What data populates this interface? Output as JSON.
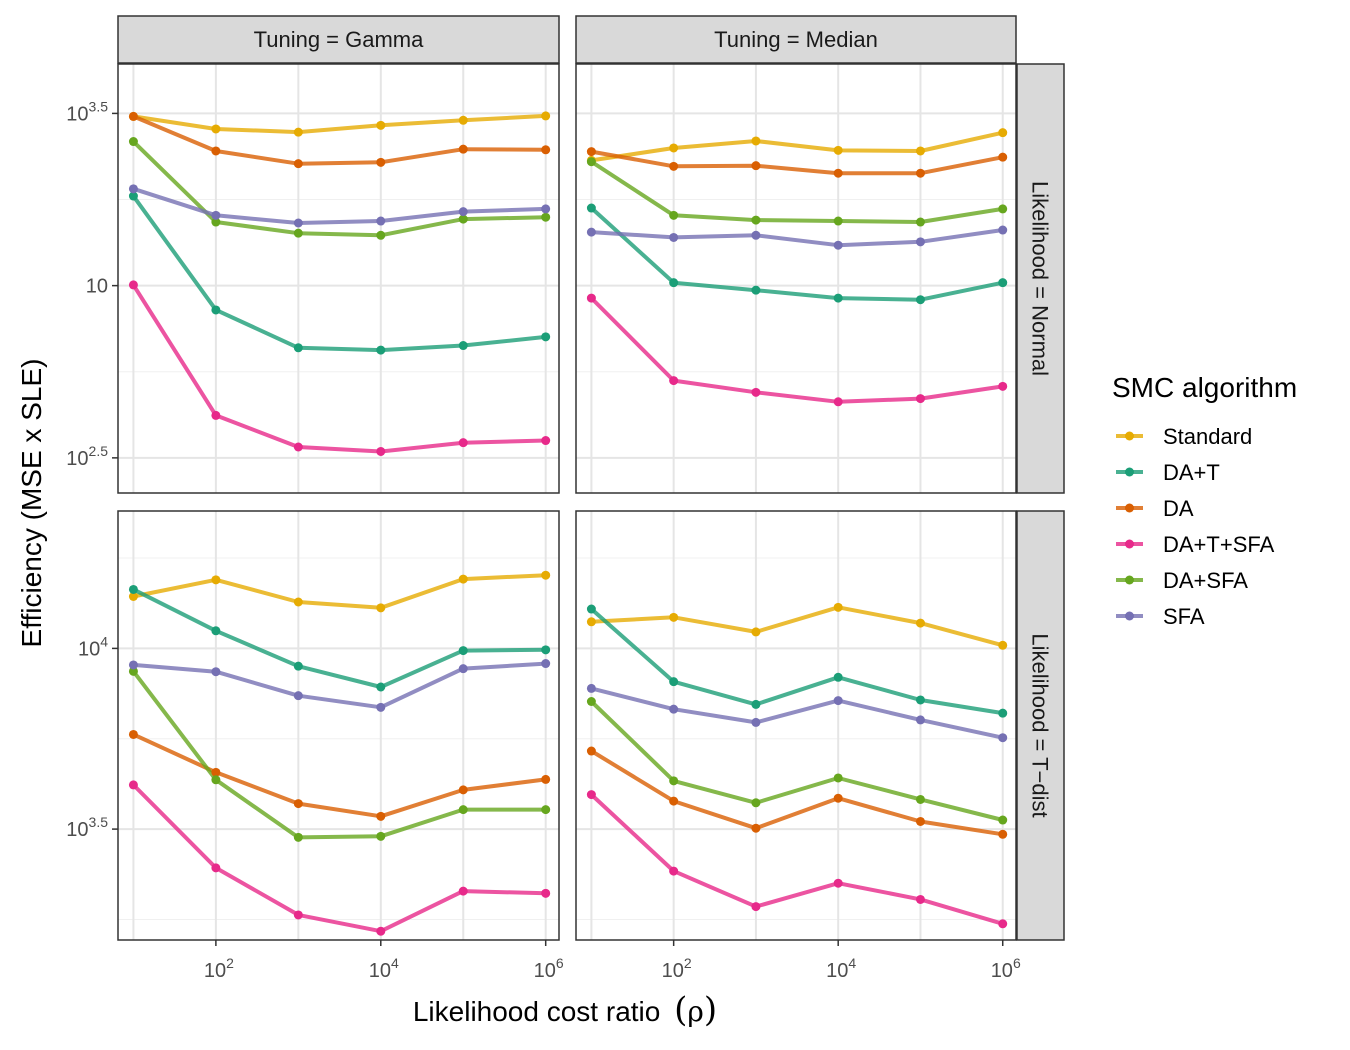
{
  "chart_data": {
    "type": "line",
    "xlabel": "Likelihood cost ratio",
    "xlabel_symbol": "ρ",
    "ylabel": "Efficiency (MSE x SLE)",
    "x_scale": "log10",
    "y_scale": "log10",
    "x": [
      10,
      100,
      1000,
      10000,
      100000,
      1000000
    ],
    "x_ticks": [
      {
        "base": "10",
        "exp": "2",
        "value": 100
      },
      {
        "base": "10",
        "exp": "4",
        "value": 10000
      },
      {
        "base": "10",
        "exp": "6",
        "value": 1000000
      }
    ],
    "xlim": [
      6.5,
      1450000
    ],
    "legend": {
      "title": "SMC algorithm",
      "position": "right"
    },
    "colors": {
      "Standard": "#E6AB02",
      "DA+T": "#1B9E77",
      "DA": "#D95F02",
      "DA+T+SFA": "#E7298A",
      "DA+SFA": "#66A61E",
      "SFA": "#7570B3"
    },
    "grid": true,
    "col_strips": [
      "Tuning = Gamma",
      "Tuning = Median"
    ],
    "row_strips": [
      "Likelihood = Normal",
      "Likelihood = T−dist"
    ],
    "panels": [
      {
        "tuning": "Tuning = Gamma",
        "likelihood": "Likelihood = Normal",
        "ylim": [
          250,
          4400
        ],
        "y_ticks": [
          {
            "base": "10",
            "exp": "2.5",
            "value": 316.2
          },
          {
            "base": "10",
            "exp": "",
            "value": 1000
          },
          {
            "base": "10",
            "exp": "3.5",
            "value": 3162.3
          }
        ],
        "series": [
          {
            "name": "Standard",
            "values": [
              3100,
              2850,
              2790,
              2920,
              3020,
              3110
            ]
          },
          {
            "name": "DA+T",
            "values": [
              1820,
              850,
              660,
              650,
              670,
              710
            ]
          },
          {
            "name": "DA",
            "values": [
              3100,
              2460,
              2260,
              2280,
              2490,
              2480
            ]
          },
          {
            "name": "DA+T+SFA",
            "values": [
              1005,
              420,
              340,
              330,
              350,
              355
            ]
          },
          {
            "name": "DA+SFA",
            "values": [
              2620,
              1530,
              1420,
              1400,
              1560,
              1580
            ]
          },
          {
            "name": "SFA",
            "values": [
              1910,
              1600,
              1520,
              1540,
              1640,
              1670
            ]
          }
        ]
      },
      {
        "tuning": "Tuning = Median",
        "likelihood": "Likelihood = Normal",
        "ylim": [
          250,
          4400
        ],
        "y_ticks": [
          {
            "base": "10",
            "exp": "2.5",
            "value": 316.2
          },
          {
            "base": "10",
            "exp": "",
            "value": 1000
          },
          {
            "base": "10",
            "exp": "3.5",
            "value": 3162.3
          }
        ],
        "series": [
          {
            "name": "Standard",
            "values": [
              2310,
              2510,
              2630,
              2470,
              2460,
              2780
            ]
          },
          {
            "name": "DA+T",
            "values": [
              1680,
              1020,
              970,
              920,
              910,
              1020
            ]
          },
          {
            "name": "DA",
            "values": [
              2450,
              2220,
              2230,
              2120,
              2120,
              2360
            ]
          },
          {
            "name": "DA+T+SFA",
            "values": [
              920,
              530,
              490,
              460,
              470,
              510
            ]
          },
          {
            "name": "DA+SFA",
            "values": [
              2290,
              1600,
              1550,
              1540,
              1530,
              1670
            ]
          },
          {
            "name": "SFA",
            "values": [
              1430,
              1380,
              1400,
              1310,
              1340,
              1450
            ]
          }
        ]
      },
      {
        "tuning": "Tuning = Gamma",
        "likelihood": "Likelihood = T−dist",
        "ylim": [
          1560,
          24000
        ],
        "y_ticks": [
          {
            "base": "10",
            "exp": "3.5",
            "value": 3162.3
          },
          {
            "base": "10",
            "exp": "4",
            "value": 10000
          }
        ],
        "series": [
          {
            "name": "Standard",
            "values": [
              13920,
              15480,
              13440,
              12950,
              15550,
              15940
            ]
          },
          {
            "name": "DA+T",
            "values": [
              14560,
              11190,
              8930,
              7820,
              9860,
              9910
            ]
          },
          {
            "name": "DA",
            "values": [
              5780,
              4540,
              3720,
              3430,
              4060,
              4340
            ]
          },
          {
            "name": "DA+T+SFA",
            "values": [
              4190,
              2470,
              1830,
              1650,
              2130,
              2100
            ]
          },
          {
            "name": "DA+SFA",
            "values": [
              8640,
              4330,
              3000,
              3020,
              3580,
              3580
            ]
          },
          {
            "name": "SFA",
            "values": [
              9000,
              8620,
              7400,
              6870,
              8790,
              9080
            ]
          }
        ]
      },
      {
        "tuning": "Tuning = Median",
        "likelihood": "Likelihood = T−dist",
        "ylim": [
          1560,
          24000
        ],
        "y_ticks": [
          {
            "base": "10",
            "exp": "3.5",
            "value": 3162.3
          },
          {
            "base": "10",
            "exp": "4",
            "value": 10000
          }
        ],
        "series": [
          {
            "name": "Standard",
            "values": [
              11850,
              12190,
              11110,
              12990,
              11750,
              10200
            ]
          },
          {
            "name": "DA+T",
            "values": [
              12850,
              8090,
              7000,
              8320,
              7200,
              6620
            ]
          },
          {
            "name": "DA",
            "values": [
              5200,
              3780,
              3180,
              3850,
              3320,
              3060
            ]
          },
          {
            "name": "DA+T+SFA",
            "values": [
              3940,
              2420,
              1930,
              2240,
              2020,
              1730
            ]
          },
          {
            "name": "DA+SFA",
            "values": [
              7130,
              4300,
              3740,
              4380,
              3820,
              3350
            ]
          },
          {
            "name": "SFA",
            "values": [
              7750,
              6790,
              6240,
              7170,
              6340,
              5660
            ]
          }
        ]
      }
    ]
  }
}
